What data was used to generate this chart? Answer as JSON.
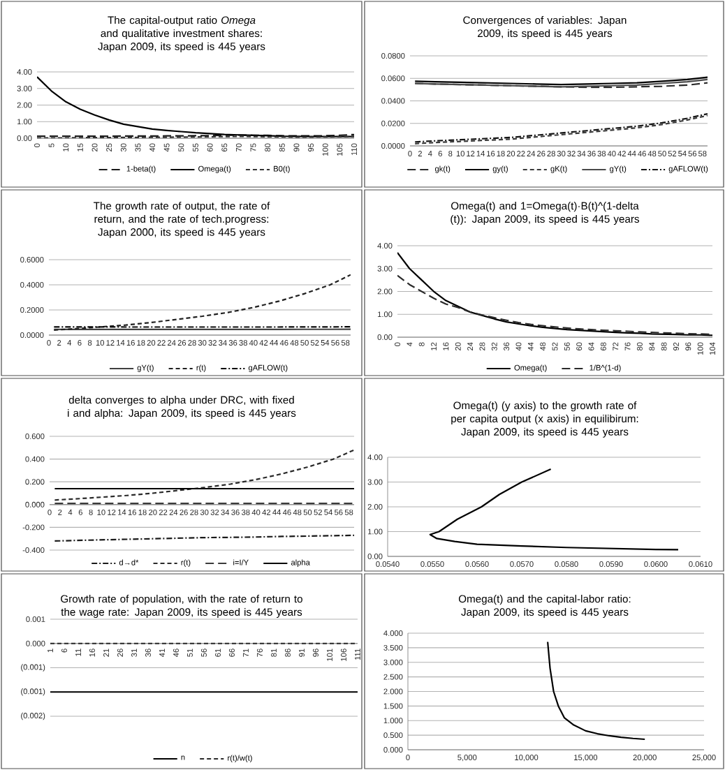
{
  "chart_data": [
    {
      "type": "line",
      "title": "The capital-output ratio *Omega* and qualitative investment shares: Japan 2009, its speed is 445 years",
      "x": [
        0,
        5,
        10,
        15,
        20,
        25,
        30,
        35,
        40,
        45,
        50,
        55,
        60,
        65,
        70,
        75,
        80,
        85,
        90,
        95,
        100,
        105,
        110
      ],
      "xlim": [
        0,
        110
      ],
      "xticks": [
        0,
        5,
        10,
        15,
        20,
        25,
        30,
        35,
        40,
        45,
        50,
        55,
        60,
        65,
        70,
        75,
        80,
        85,
        90,
        95,
        100,
        105,
        110
      ],
      "ylim": [
        0,
        4
      ],
      "yticks": [
        {
          "value": 0,
          "label": "0.00"
        },
        {
          "value": 1,
          "label": "1.00"
        },
        {
          "value": 2,
          "label": "2.00"
        },
        {
          "value": 3,
          "label": "3.00"
        },
        {
          "value": 4,
          "label": "4.00"
        }
      ],
      "grid": "y",
      "legend": "bottom",
      "series": [
        {
          "name": "1-beta(t)",
          "color": "#1a1a1a",
          "line_style": "longdashed",
          "values": [
            0.12,
            0.12,
            0.12,
            0.12,
            0.12,
            0.12,
            0.13,
            0.13,
            0.13,
            0.14,
            0.14,
            0.15,
            0.16,
            0.18,
            0.19,
            0.18,
            0.17,
            0.15,
            0.14,
            0.14,
            0.15,
            0.18,
            0.22
          ]
        },
        {
          "name": "Omega(t)",
          "color": "#000000",
          "line_style": "solid",
          "values": [
            3.7,
            2.85,
            2.2,
            1.75,
            1.4,
            1.1,
            0.85,
            0.7,
            0.55,
            0.47,
            0.4,
            0.33,
            0.28,
            0.23,
            0.2,
            0.17,
            0.15,
            0.12,
            0.11,
            0.1,
            0.1,
            0.1,
            0.1
          ]
        },
        {
          "name": "B0(t)",
          "color": "#333333",
          "line_style": "dashed",
          "values": [
            0.02,
            0.02,
            0.02,
            0.03,
            0.04,
            0.04,
            0.05,
            0.05,
            0.06,
            0.06,
            0.07,
            0.08,
            0.09,
            0.1,
            0.11,
            0.1,
            0.09,
            0.08,
            0.07,
            0.07,
            0.08,
            0.09,
            0.1
          ]
        }
      ]
    },
    {
      "type": "line",
      "title": "Convergences of variables: Japan 2009, its speed is 445 years",
      "x": [
        1,
        5,
        10,
        15,
        20,
        25,
        30,
        35,
        40,
        45,
        50,
        55,
        59
      ],
      "xlim": [
        0,
        59
      ],
      "xticks": [
        0,
        2,
        4,
        6,
        8,
        10,
        12,
        14,
        16,
        18,
        20,
        22,
        24,
        26,
        28,
        30,
        32,
        34,
        36,
        38,
        40,
        42,
        44,
        46,
        48,
        50,
        52,
        54,
        56,
        58
      ],
      "ylim": [
        0,
        0.08
      ],
      "yticks": [
        {
          "value": 0,
          "label": "0.0000"
        },
        {
          "value": 0.02,
          "label": "0.0200"
        },
        {
          "value": 0.04,
          "label": "0.0400"
        },
        {
          "value": 0.06,
          "label": "0.0600"
        },
        {
          "value": 0.08,
          "label": "0.0800"
        }
      ],
      "grid": "y",
      "legend": "bottom",
      "series": [
        {
          "name": "gk(t)",
          "color": "#2a2a2a",
          "line_style": "longdashed",
          "values": [
            0.0555,
            0.055,
            0.0545,
            0.054,
            0.0535,
            0.053,
            0.0525,
            0.052,
            0.052,
            0.0525,
            0.053,
            0.054,
            0.056
          ]
        },
        {
          "name": "gy(t)",
          "color": "#000000",
          "line_style": "solid",
          "values": [
            0.0575,
            0.057,
            0.0565,
            0.056,
            0.0555,
            0.055,
            0.0545,
            0.055,
            0.0555,
            0.056,
            0.0575,
            0.059,
            0.061
          ]
        },
        {
          "name": "gK(t)",
          "color": "#3a3a3a",
          "line_style": "dashed",
          "values": [
            0.002,
            0.003,
            0.004,
            0.005,
            0.006,
            0.008,
            0.01,
            0.012,
            0.014,
            0.016,
            0.019,
            0.023,
            0.027
          ]
        },
        {
          "name": "gY(t)",
          "color": "#4a4a4a",
          "line_style": "solid",
          "values": [
            0.0555,
            0.055,
            0.0545,
            0.054,
            0.0535,
            0.053,
            0.0525,
            0.053,
            0.0535,
            0.054,
            0.0555,
            0.057,
            0.059
          ]
        },
        {
          "name": "gAFLOW(t)",
          "color": "#151515",
          "line_style": "dashdot",
          "values": [
            0.0035,
            0.0045,
            0.0055,
            0.0065,
            0.0075,
            0.0095,
            0.0115,
            0.0135,
            0.0155,
            0.0175,
            0.0205,
            0.0245,
            0.0285
          ]
        }
      ]
    },
    {
      "type": "line",
      "title": "The growth rate of output, the rate of return, and the rate of tech.progress: Japan 2000, its speed is 445 years",
      "x": [
        1,
        5,
        10,
        15,
        20,
        25,
        30,
        35,
        40,
        45,
        50,
        55,
        59
      ],
      "xlim": [
        0,
        59
      ],
      "xticks": [
        0,
        2,
        4,
        6,
        8,
        10,
        12,
        14,
        16,
        18,
        20,
        22,
        24,
        26,
        28,
        30,
        32,
        34,
        36,
        38,
        40,
        42,
        44,
        46,
        48,
        50,
        52,
        54,
        56,
        58
      ],
      "ylim": [
        0,
        0.6
      ],
      "yticks": [
        {
          "value": 0,
          "label": "0.0000"
        },
        {
          "value": 0.2,
          "label": "0.2000"
        },
        {
          "value": 0.4,
          "label": "0.4000"
        },
        {
          "value": 0.6,
          "label": "0.6000"
        }
      ],
      "grid": "y",
      "legend": "bottom",
      "series": [
        {
          "name": "gY(t)",
          "color": "#404040",
          "line_style": "solid",
          "values": [
            0.045,
            0.045,
            0.045,
            0.045,
            0.045,
            0.045,
            0.045,
            0.045,
            0.045,
            0.045,
            0.046,
            0.046,
            0.047
          ]
        },
        {
          "name": "r(t)",
          "color": "#202020",
          "line_style": "dashed",
          "values": [
            0.04,
            0.05,
            0.065,
            0.08,
            0.1,
            0.125,
            0.15,
            0.18,
            0.22,
            0.27,
            0.33,
            0.4,
            0.48
          ]
        },
        {
          "name": "gAFLOW(t)",
          "color": "#000000",
          "line_style": "dashdot",
          "values": [
            0.065,
            0.065,
            0.065,
            0.064,
            0.064,
            0.064,
            0.064,
            0.064,
            0.064,
            0.064,
            0.065,
            0.065,
            0.066
          ]
        }
      ]
    },
    {
      "type": "line",
      "title": "Omega(t) and 1=Omega(t)·B(t)^(1-delta (t)): Japan 2009, its speed is 445 years",
      "x": [
        0,
        4,
        8,
        12,
        16,
        20,
        24,
        28,
        32,
        36,
        40,
        44,
        48,
        52,
        56,
        60,
        64,
        68,
        72,
        76,
        80,
        84,
        88,
        92,
        96,
        100,
        104
      ],
      "xlim": [
        0,
        104
      ],
      "xticks": [
        0,
        4,
        8,
        12,
        16,
        20,
        24,
        28,
        32,
        36,
        40,
        44,
        48,
        52,
        56,
        60,
        64,
        68,
        72,
        76,
        80,
        84,
        88,
        92,
        96,
        100,
        104
      ],
      "ylim": [
        0,
        4
      ],
      "yticks": [
        {
          "value": 0,
          "label": "0.00"
        },
        {
          "value": 1,
          "label": "1.00"
        },
        {
          "value": 2,
          "label": "2.00"
        },
        {
          "value": 3,
          "label": "3.00"
        },
        {
          "value": 4,
          "label": "4.00"
        }
      ],
      "grid": "y",
      "legend": "bottom",
      "series": [
        {
          "name": "Omega(t)",
          "color": "#000000",
          "line_style": "solid",
          "values": [
            3.7,
            3.0,
            2.5,
            2.0,
            1.6,
            1.35,
            1.1,
            0.95,
            0.8,
            0.67,
            0.58,
            0.5,
            0.43,
            0.38,
            0.33,
            0.3,
            0.27,
            0.24,
            0.21,
            0.19,
            0.17,
            0.14,
            0.13,
            0.12,
            0.1,
            0.1,
            0.08
          ]
        },
        {
          "name": "1/B^(1-d)",
          "color": "#2a2a2a",
          "line_style": "longdashed",
          "values": [
            2.7,
            2.3,
            2.0,
            1.7,
            1.45,
            1.3,
            1.1,
            0.97,
            0.85,
            0.74,
            0.64,
            0.56,
            0.5,
            0.45,
            0.4,
            0.36,
            0.33,
            0.3,
            0.28,
            0.26,
            0.23,
            0.21,
            0.19,
            0.17,
            0.15,
            0.14,
            0.12
          ]
        }
      ]
    },
    {
      "type": "line",
      "title": "delta converges to alpha under DRC, with fixed i and alpha: Japan 2009, its speed is 445 years",
      "x": [
        1,
        5,
        10,
        15,
        20,
        25,
        30,
        35,
        40,
        45,
        50,
        55,
        59
      ],
      "xlim": [
        0,
        59
      ],
      "xticks": [
        0,
        2,
        4,
        6,
        8,
        10,
        12,
        14,
        16,
        18,
        20,
        22,
        24,
        26,
        28,
        30,
        32,
        34,
        36,
        38,
        40,
        42,
        44,
        46,
        48,
        50,
        52,
        54,
        56,
        58
      ],
      "ylim": [
        -0.4,
        0.6
      ],
      "yticks": [
        {
          "value": -0.4,
          "label": "-0.400"
        },
        {
          "value": -0.2,
          "label": "-0.200"
        },
        {
          "value": 0,
          "label": "0.000"
        },
        {
          "value": 0.2,
          "label": "0.200"
        },
        {
          "value": 0.4,
          "label": "0.400"
        },
        {
          "value": 0.6,
          "label": "0.600"
        }
      ],
      "grid": "y",
      "legend": "bottom",
      "series": [
        {
          "name": "d→d*",
          "color": "#1a1a1a",
          "line_style": "dashdot",
          "values": [
            -0.32,
            -0.315,
            -0.31,
            -0.305,
            -0.3,
            -0.295,
            -0.29,
            -0.288,
            -0.285,
            -0.28,
            -0.277,
            -0.273,
            -0.27
          ]
        },
        {
          "name": "r(t)",
          "color": "#2a2a2a",
          "line_style": "dashed",
          "values": [
            0.04,
            0.05,
            0.065,
            0.08,
            0.1,
            0.125,
            0.15,
            0.18,
            0.22,
            0.27,
            0.33,
            0.4,
            0.48
          ]
        },
        {
          "name": "i=I/Y",
          "color": "#3a3a3a",
          "line_style": "longdashed",
          "values": [
            0.01,
            0.01,
            0.01,
            0.01,
            0.01,
            0.01,
            0.01,
            0.01,
            0.01,
            0.01,
            0.01,
            0.01,
            0.01
          ]
        },
        {
          "name": "alpha",
          "color": "#000000",
          "line_style": "solid",
          "values": [
            0.14,
            0.14,
            0.14,
            0.14,
            0.14,
            0.14,
            0.14,
            0.14,
            0.14,
            0.14,
            0.14,
            0.14,
            0.14
          ]
        }
      ]
    },
    {
      "type": "line",
      "title": "Omega(t) (y axis) to the growth rate of per capita output (x axis) in equilibirum: Japan 2009, its speed is 445 years",
      "x": [
        0.05765,
        0.057,
        0.0565,
        0.0561,
        0.05556,
        0.05515,
        0.05495,
        0.0551,
        0.0555,
        0.056,
        0.057,
        0.058,
        0.059,
        0.06,
        0.0605
      ],
      "xlim": [
        0.054,
        0.061
      ],
      "xticks": [
        {
          "value": 0.054,
          "label": "0.0540"
        },
        {
          "value": 0.055,
          "label": "0.0550"
        },
        {
          "value": 0.056,
          "label": "0.0560"
        },
        {
          "value": 0.057,
          "label": "0.0570"
        },
        {
          "value": 0.058,
          "label": "0.0580"
        },
        {
          "value": 0.059,
          "label": "0.0590"
        },
        {
          "value": 0.06,
          "label": "0.0600"
        },
        {
          "value": 0.061,
          "label": "0.0610"
        }
      ],
      "ylim": [
        0,
        4
      ],
      "yticks": [
        {
          "value": 0,
          "label": "0.00"
        },
        {
          "value": 1,
          "label": "1.00"
        },
        {
          "value": 2,
          "label": "2.00"
        },
        {
          "value": 3,
          "label": "3.00"
        },
        {
          "value": 4,
          "label": "4.00"
        }
      ],
      "grid": "y",
      "series": [
        {
          "color": "#000000",
          "line_style": "solid",
          "values": [
            3.52,
            3.0,
            2.5,
            2.0,
            1.5,
            1.0,
            0.88,
            0.72,
            0.6,
            0.49,
            0.42,
            0.36,
            0.32,
            0.28,
            0.27
          ]
        }
      ]
    },
    {
      "type": "line",
      "title": "Growth rate of population, with the rate of return to the wage rate: Japan 2009, its speed is 445 years",
      "x": [
        1,
        76,
        81,
        111
      ],
      "xlim": [
        1,
        111
      ],
      "xticks": [
        1,
        6,
        11,
        16,
        21,
        26,
        31,
        36,
        41,
        46,
        51,
        56,
        61,
        66,
        71,
        76,
        81,
        86,
        91,
        96,
        101,
        106,
        111
      ],
      "ylim": [
        -0.0015,
        0.0005
      ],
      "yticks": [
        {
          "value": -0.0015,
          "label": "(0.002)"
        },
        {
          "value": -0.001,
          "label": "(0.001)"
        },
        {
          "value": -0.0005,
          "label": "(0.001)"
        },
        {
          "value": 0,
          "label": "0.000"
        },
        {
          "value": 0.0005,
          "label": "0.001"
        }
      ],
      "grid": "y",
      "legend": "bottom",
      "series": [
        {
          "name": "n",
          "color": "#000000",
          "line_style": "solid",
          "values": [
            -0.001,
            -0.001,
            -0.001,
            -0.001
          ]
        },
        {
          "name": "r(t)/w(t)",
          "color": "#2a2a2a",
          "line_style": "dashed",
          "values": [
            0,
            0,
            0,
            0
          ]
        }
      ]
    },
    {
      "type": "line",
      "title": "Omega(t) and the capital-labor ratio: Japan 2009, its speed is 445 years",
      "x": [
        11800,
        12000,
        12300,
        12700,
        13200,
        14000,
        15000,
        16000,
        17000,
        18000,
        19000,
        20000
      ],
      "xlim": [
        0,
        25000
      ],
      "xticks": [
        0,
        {
          "value": 5000,
          "label": "5,000"
        },
        {
          "value": 10000,
          "label": "10,000"
        },
        {
          "value": 15000,
          "label": "15,000"
        },
        {
          "value": 20000,
          "label": "20,000"
        },
        {
          "value": 25000,
          "label": "25,000"
        }
      ],
      "ylim": [
        0,
        4
      ],
      "yticks": [
        {
          "value": 0,
          "label": "0.000"
        },
        {
          "value": 0.5,
          "label": "0.500"
        },
        {
          "value": 1,
          "label": "1.000"
        },
        {
          "value": 1.5,
          "label": "1.500"
        },
        {
          "value": 2,
          "label": "2.000"
        },
        {
          "value": 2.5,
          "label": "2.500"
        },
        {
          "value": 3,
          "label": "3.000"
        },
        {
          "value": 3.5,
          "label": "3.500"
        },
        {
          "value": 4,
          "label": "4.000"
        }
      ],
      "grid": "y",
      "series": [
        {
          "color": "#000000",
          "line_style": "solid",
          "values": [
            3.7,
            2.8,
            2.0,
            1.5,
            1.1,
            0.85,
            0.65,
            0.55,
            0.48,
            0.43,
            0.39,
            0.36
          ]
        }
      ]
    }
  ]
}
